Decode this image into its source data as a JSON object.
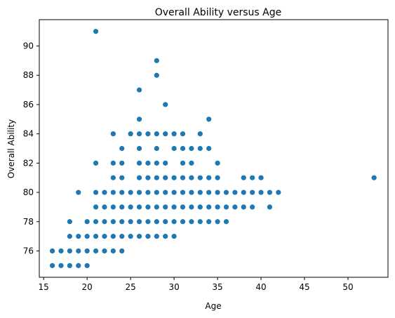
{
  "chart_data": {
    "type": "scatter",
    "title": "Overall Ability versus Age",
    "xlabel": "Age",
    "ylabel": "Overall Ability",
    "xlim": [
      14.5,
      54.6
    ],
    "ylim": [
      74.2,
      91.8
    ],
    "xticks": [
      15,
      20,
      25,
      30,
      35,
      40,
      45,
      50
    ],
    "yticks": [
      76,
      78,
      80,
      82,
      84,
      86,
      88,
      90
    ],
    "grid": false,
    "point_color": "#1f77b4",
    "points": [
      [
        16,
        75
      ],
      [
        16,
        76
      ],
      [
        17,
        75
      ],
      [
        17,
        76
      ],
      [
        18,
        75
      ],
      [
        18,
        76
      ],
      [
        18,
        77
      ],
      [
        18,
        78
      ],
      [
        19,
        75
      ],
      [
        19,
        76
      ],
      [
        19,
        77
      ],
      [
        19,
        80
      ],
      [
        20,
        75
      ],
      [
        20,
        76
      ],
      [
        20,
        77
      ],
      [
        20,
        78
      ],
      [
        21,
        76
      ],
      [
        21,
        77
      ],
      [
        21,
        78
      ],
      [
        21,
        79
      ],
      [
        21,
        80
      ],
      [
        21,
        82
      ],
      [
        21,
        91
      ],
      [
        22,
        76
      ],
      [
        22,
        77
      ],
      [
        22,
        78
      ],
      [
        22,
        79
      ],
      [
        22,
        80
      ],
      [
        23,
        76
      ],
      [
        23,
        77
      ],
      [
        23,
        78
      ],
      [
        23,
        79
      ],
      [
        23,
        80
      ],
      [
        23,
        81
      ],
      [
        23,
        82
      ],
      [
        23,
        84
      ],
      [
        24,
        76
      ],
      [
        24,
        77
      ],
      [
        24,
        78
      ],
      [
        24,
        79
      ],
      [
        24,
        80
      ],
      [
        24,
        81
      ],
      [
        24,
        82
      ],
      [
        24,
        83
      ],
      [
        25,
        77
      ],
      [
        25,
        78
      ],
      [
        25,
        79
      ],
      [
        25,
        80
      ],
      [
        25,
        84
      ],
      [
        26,
        77
      ],
      [
        26,
        78
      ],
      [
        26,
        79
      ],
      [
        26,
        80
      ],
      [
        26,
        81
      ],
      [
        26,
        82
      ],
      [
        26,
        83
      ],
      [
        26,
        84
      ],
      [
        26,
        85
      ],
      [
        26,
        87
      ],
      [
        27,
        77
      ],
      [
        27,
        78
      ],
      [
        27,
        79
      ],
      [
        27,
        80
      ],
      [
        27,
        81
      ],
      [
        27,
        82
      ],
      [
        27,
        84
      ],
      [
        28,
        77
      ],
      [
        28,
        78
      ],
      [
        28,
        79
      ],
      [
        28,
        80
      ],
      [
        28,
        81
      ],
      [
        28,
        82
      ],
      [
        28,
        83
      ],
      [
        28,
        84
      ],
      [
        28,
        88
      ],
      [
        28,
        89
      ],
      [
        29,
        77
      ],
      [
        29,
        78
      ],
      [
        29,
        79
      ],
      [
        29,
        80
      ],
      [
        29,
        81
      ],
      [
        29,
        82
      ],
      [
        29,
        84
      ],
      [
        29,
        86
      ],
      [
        30,
        77
      ],
      [
        30,
        78
      ],
      [
        30,
        79
      ],
      [
        30,
        80
      ],
      [
        30,
        81
      ],
      [
        30,
        83
      ],
      [
        30,
        84
      ],
      [
        31,
        78
      ],
      [
        31,
        79
      ],
      [
        31,
        80
      ],
      [
        31,
        81
      ],
      [
        31,
        82
      ],
      [
        31,
        83
      ],
      [
        31,
        84
      ],
      [
        32,
        78
      ],
      [
        32,
        79
      ],
      [
        32,
        80
      ],
      [
        32,
        81
      ],
      [
        32,
        82
      ],
      [
        32,
        83
      ],
      [
        33,
        78
      ],
      [
        33,
        79
      ],
      [
        33,
        80
      ],
      [
        33,
        81
      ],
      [
        33,
        83
      ],
      [
        33,
        84
      ],
      [
        34,
        78
      ],
      [
        34,
        79
      ],
      [
        34,
        80
      ],
      [
        34,
        81
      ],
      [
        34,
        83
      ],
      [
        34,
        85
      ],
      [
        35,
        78
      ],
      [
        35,
        79
      ],
      [
        35,
        80
      ],
      [
        35,
        81
      ],
      [
        35,
        82
      ],
      [
        36,
        78
      ],
      [
        36,
        79
      ],
      [
        36,
        80
      ],
      [
        37,
        79
      ],
      [
        37,
        80
      ],
      [
        38,
        79
      ],
      [
        38,
        80
      ],
      [
        38,
        81
      ],
      [
        39,
        79
      ],
      [
        39,
        80
      ],
      [
        39,
        81
      ],
      [
        40,
        80
      ],
      [
        40,
        81
      ],
      [
        41,
        79
      ],
      [
        41,
        80
      ],
      [
        42,
        80
      ],
      [
        53,
        81
      ]
    ]
  }
}
